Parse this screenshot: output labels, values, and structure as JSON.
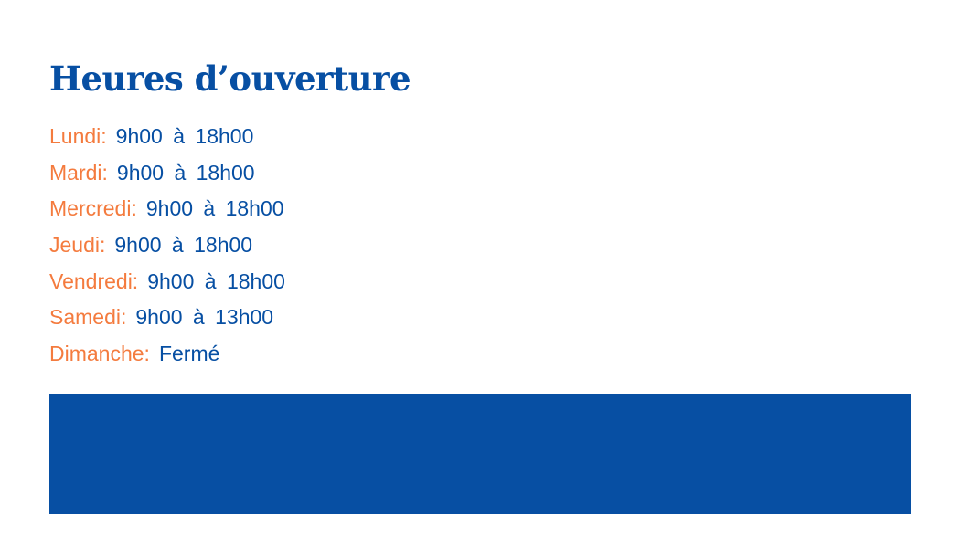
{
  "title": "Heures d’ouverture",
  "hours": [
    {
      "day": "Lundi:",
      "time": "9h00 à 18h00"
    },
    {
      "day": "Mardi:",
      "time": "9h00 à 18h00"
    },
    {
      "day": "Mercredi:",
      "time": "9h00 à 18h00"
    },
    {
      "day": "Jeudi:",
      "time": "9h00 à 18h00"
    },
    {
      "day": "Vendredi:",
      "time": "9h00 à 18h00"
    },
    {
      "day": "Samedi:",
      "time": "9h00 à 13h00"
    },
    {
      "day": "Dimanche:",
      "time": "Fermé"
    }
  ],
  "colors": {
    "primary": "#074fa3",
    "accent": "#f47b3e"
  }
}
